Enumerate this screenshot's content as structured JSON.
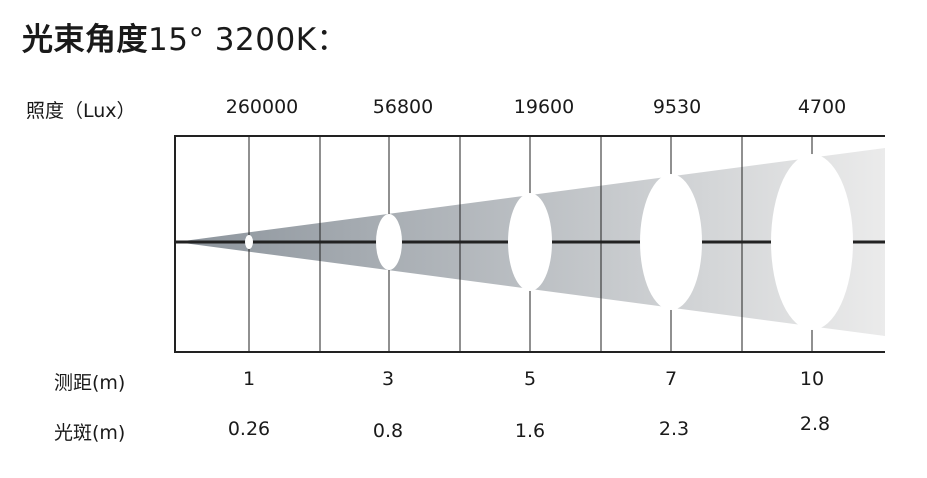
{
  "title": {
    "heading": "光束角度",
    "spec": "15°  3200K："
  },
  "rows": {
    "illuminance_label": "照度（Lux）",
    "distance_label": "测距(m)",
    "spot_label": "光斑(m)"
  },
  "columns": [
    {
      "lux": "260000",
      "distance": "1",
      "spot": "0.26"
    },
    {
      "lux": "56800",
      "distance": "3",
      "spot": "0.8"
    },
    {
      "lux": "19600",
      "distance": "5",
      "spot": "1.6"
    },
    {
      "lux": "9530",
      "distance": "7",
      "spot": "2.3"
    },
    {
      "lux": "4700",
      "distance": "10",
      "spot": "2.8"
    }
  ],
  "colors": {
    "beam_dark": "#8c949c",
    "beam_light": "#ebebeb",
    "grid": "#222222"
  }
}
